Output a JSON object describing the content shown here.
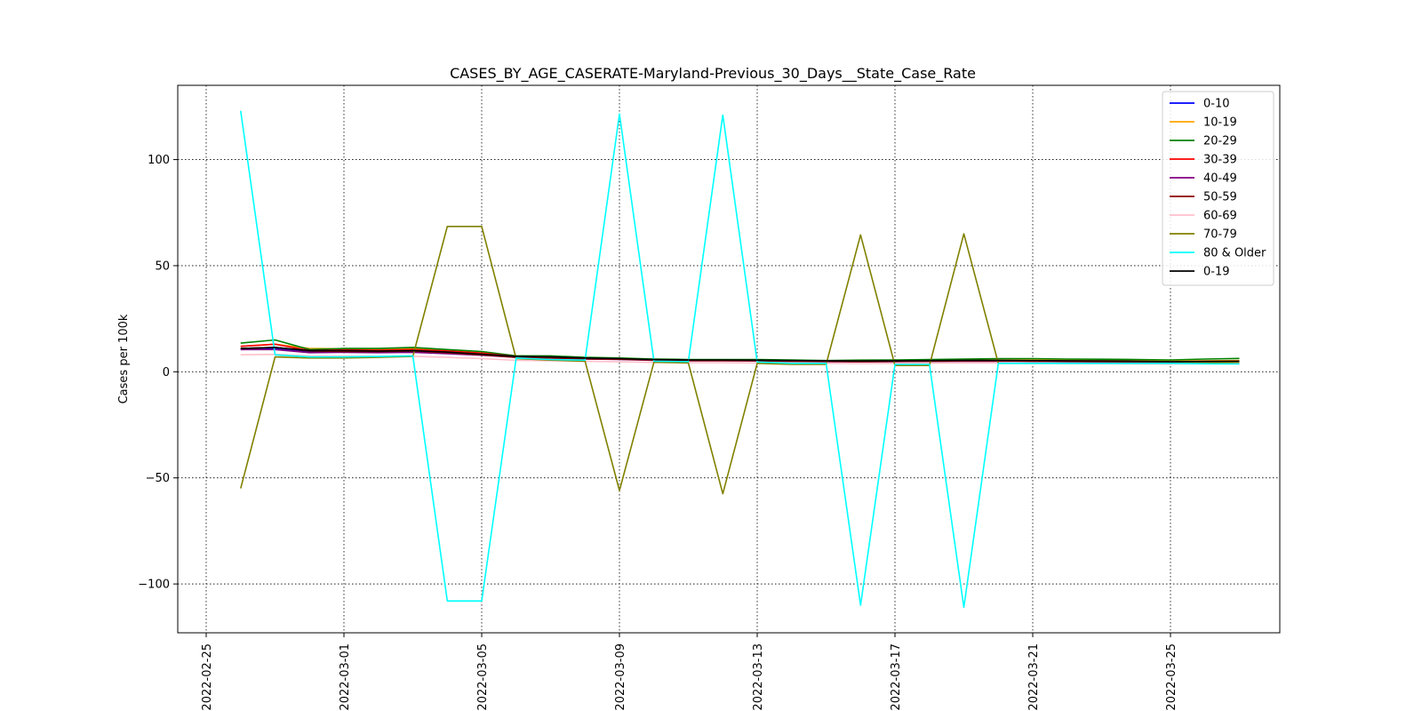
{
  "chart_data": {
    "type": "line",
    "title": "CASES_BY_AGE_CASERATE-Maryland-Previous_30_Days__State_Case_Rate",
    "xlabel": "",
    "ylabel": "Cases per 100k",
    "x_type": "date",
    "xlim": [
      "2022-02-25",
      "2022-03-29"
    ],
    "ylim": [
      -123,
      135
    ],
    "x_ticks": [
      "2022-02-25",
      "2022-03-01",
      "2022-03-05",
      "2022-03-09",
      "2022-03-13",
      "2022-03-17",
      "2022-03-21",
      "2022-03-25"
    ],
    "y_ticks": [
      -100,
      -50,
      0,
      50,
      100
    ],
    "grid": true,
    "legend_position": "top-right",
    "x": [
      "2022-02-26",
      "2022-02-27",
      "2022-02-28",
      "2022-03-01",
      "2022-03-02",
      "2022-03-03",
      "2022-03-04",
      "2022-03-05",
      "2022-03-06",
      "2022-03-07",
      "2022-03-08",
      "2022-03-09",
      "2022-03-10",
      "2022-03-11",
      "2022-03-12",
      "2022-03-13",
      "2022-03-14",
      "2022-03-15",
      "2022-03-16",
      "2022-03-17",
      "2022-03-18",
      "2022-03-19",
      "2022-03-20",
      "2022-03-21",
      "2022-03-22",
      "2022-03-23",
      "2022-03-24",
      "2022-03-25",
      "2022-03-26",
      "2022-03-27"
    ],
    "series": [
      {
        "name": "0-10",
        "color": "#0000ff",
        "values": [
          10.5,
          10.8,
          9.5,
          9.5,
          9.3,
          9.4,
          8.8,
          8.0,
          7.2,
          6.9,
          6.4,
          6.1,
          5.8,
          5.5,
          5.5,
          5.4,
          5.2,
          5.1,
          5.0,
          5.1,
          5.2,
          5.3,
          5.3,
          5.2,
          5.1,
          5.0,
          4.9,
          4.7,
          4.8,
          4.9
        ]
      },
      {
        "name": "10-19",
        "color": "#ffa500",
        "values": [
          12.0,
          13.0,
          11.0,
          10.8,
          10.6,
          10.9,
          10.0,
          8.8,
          7.5,
          7.1,
          6.6,
          6.3,
          5.9,
          5.6,
          5.6,
          5.5,
          5.3,
          5.2,
          5.1,
          5.2,
          5.4,
          5.5,
          5.6,
          5.6,
          5.5,
          5.4,
          5.3,
          5.1,
          5.2,
          5.3
        ]
      },
      {
        "name": "20-29",
        "color": "#008000",
        "values": [
          13.5,
          15.0,
          10.5,
          11.0,
          11.0,
          11.5,
          10.5,
          9.5,
          7.5,
          7.5,
          6.8,
          6.5,
          6.0,
          5.8,
          5.8,
          5.8,
          5.6,
          5.3,
          5.5,
          5.6,
          5.8,
          6.0,
          6.2,
          6.2,
          6.0,
          5.9,
          5.8,
          5.6,
          6.0,
          6.3
        ]
      },
      {
        "name": "30-39",
        "color": "#ff0000",
        "values": [
          12.0,
          13.0,
          10.0,
          10.3,
          10.2,
          10.5,
          9.8,
          8.8,
          7.2,
          6.8,
          6.3,
          6.0,
          5.6,
          5.4,
          5.4,
          5.3,
          5.1,
          5.0,
          4.9,
          5.0,
          5.1,
          5.2,
          5.2,
          5.1,
          5.0,
          4.9,
          4.8,
          4.6,
          4.8,
          4.9
        ]
      },
      {
        "name": "40-49",
        "color": "#800080",
        "values": [
          10.5,
          10.5,
          9.0,
          9.2,
          9.0,
          9.2,
          8.5,
          7.8,
          6.8,
          6.5,
          6.0,
          5.8,
          5.4,
          5.2,
          5.2,
          5.1,
          4.9,
          4.8,
          4.7,
          4.8,
          4.9,
          5.0,
          5.0,
          4.9,
          4.8,
          4.7,
          4.6,
          4.4,
          4.5,
          4.6
        ]
      },
      {
        "name": "50-59",
        "color": "#8b0000",
        "values": [
          11.0,
          11.5,
          9.8,
          9.6,
          9.5,
          9.8,
          9.0,
          8.0,
          6.8,
          6.5,
          6.1,
          5.9,
          5.5,
          5.3,
          5.3,
          5.2,
          5.0,
          4.9,
          4.8,
          4.9,
          5.0,
          5.1,
          5.1,
          5.0,
          4.9,
          4.8,
          4.7,
          4.5,
          4.6,
          4.7
        ]
      },
      {
        "name": "60-69",
        "color": "#ffc0cb",
        "values": [
          8.0,
          8.2,
          7.4,
          7.4,
          7.2,
          7.3,
          6.8,
          6.2,
          5.4,
          5.2,
          4.9,
          4.7,
          4.4,
          4.3,
          4.3,
          4.2,
          4.1,
          4.0,
          3.9,
          4.0,
          4.1,
          4.2,
          4.2,
          4.1,
          4.0,
          3.9,
          3.8,
          3.7,
          3.8,
          3.9
        ]
      },
      {
        "name": "70-79",
        "color": "#808000",
        "values": [
          -55.0,
          7.0,
          6.5,
          6.5,
          6.8,
          7.2,
          68.5,
          68.5,
          6.2,
          5.5,
          5.0,
          -56.0,
          4.5,
          4.2,
          -57.5,
          4.0,
          3.5,
          3.5,
          64.5,
          3.0,
          3.0,
          65.0,
          4.0,
          4.0,
          4.0,
          4.0,
          4.0,
          4.0,
          4.2,
          4.5
        ]
      },
      {
        "name": "80 & Older",
        "color": "#00ffff",
        "values": [
          123.0,
          8.0,
          7.0,
          7.0,
          7.2,
          7.5,
          -108.0,
          -108.0,
          6.5,
          5.8,
          5.5,
          121.5,
          5.0,
          4.8,
          121.0,
          4.6,
          4.0,
          4.0,
          -110.0,
          3.5,
          3.5,
          -111.0,
          4.0,
          4.0,
          4.0,
          4.0,
          4.0,
          4.0,
          3.8,
          3.7
        ]
      },
      {
        "name": "0-19",
        "color": "#000000",
        "values": [
          11.0,
          11.5,
          10.0,
          10.0,
          9.8,
          10.0,
          9.3,
          8.3,
          7.3,
          7.0,
          6.5,
          6.2,
          5.8,
          5.6,
          5.6,
          5.5,
          5.3,
          5.2,
          5.1,
          5.2,
          5.3,
          5.4,
          5.4,
          5.3,
          5.2,
          5.1,
          5.0,
          4.8,
          4.9,
          5.0
        ]
      }
    ]
  }
}
